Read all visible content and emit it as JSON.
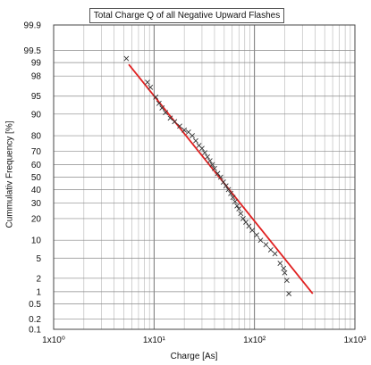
{
  "chart_data": {
    "type": "scatter",
    "title": "Total Charge Q of all Negative Upward Flashes",
    "xlabel": "Charge [As]",
    "ylabel": "Cummulativ Frequency [%]",
    "x_scale": "log",
    "y_scale": "probability",
    "xlim": [
      1,
      1000
    ],
    "ylim": [
      0.1,
      99.9
    ],
    "x_ticks": [
      "1x10⁰",
      "1x10¹",
      "1x10²",
      "1x10³"
    ],
    "x_tick_values": [
      1,
      10,
      100,
      1000
    ],
    "y_ticks": [
      "0.1",
      "0.2",
      "0.5",
      "1",
      "2",
      "5",
      "10",
      "20",
      "30",
      "40",
      "50",
      "60",
      "70",
      "80",
      "90",
      "95",
      "98",
      "99",
      "99.5",
      "99.9"
    ],
    "y_tick_values": [
      0.1,
      0.2,
      0.5,
      1,
      2,
      5,
      10,
      20,
      30,
      40,
      50,
      60,
      70,
      80,
      90,
      95,
      98,
      99,
      99.5,
      99.9
    ],
    "grid": true,
    "series": [
      {
        "marker": "x",
        "color": "#333333",
        "points": [
          [
            5.3,
            99.2
          ],
          [
            8.6,
            97.3
          ],
          [
            9.2,
            96.6
          ],
          [
            10.4,
            94.8
          ],
          [
            11.2,
            93.3
          ],
          [
            12.0,
            92.0
          ],
          [
            13.0,
            90.5
          ],
          [
            14.5,
            88.5
          ],
          [
            16.0,
            87.0
          ],
          [
            18.0,
            85.0
          ],
          [
            20.0,
            83.0
          ],
          [
            22.0,
            82.0
          ],
          [
            24.0,
            80.0
          ],
          [
            26.0,
            77.0
          ],
          [
            28.0,
            74.0
          ],
          [
            30.0,
            72.0
          ],
          [
            32.0,
            69.0
          ],
          [
            34.0,
            66.0
          ],
          [
            36.0,
            63.0
          ],
          [
            38.0,
            60.0
          ],
          [
            40.0,
            57.0
          ],
          [
            43.0,
            53.0
          ],
          [
            46.0,
            50.0
          ],
          [
            49.0,
            46.0
          ],
          [
            52.0,
            43.0
          ],
          [
            55.0,
            40.0
          ],
          [
            58.0,
            37.0
          ],
          [
            61.0,
            34.0
          ],
          [
            64.0,
            31.0
          ],
          [
            67.0,
            28.0
          ],
          [
            70.0,
            26.0
          ],
          [
            73.0,
            23.0
          ],
          [
            77.0,
            20.0
          ],
          [
            82.0,
            18.0
          ],
          [
            88.0,
            16.0
          ],
          [
            95.0,
            14.0
          ],
          [
            105.0,
            12.0
          ],
          [
            115.0,
            10.0
          ],
          [
            130.0,
            8.5
          ],
          [
            145.0,
            7.0
          ],
          [
            160.0,
            6.0
          ],
          [
            180.0,
            4.0
          ],
          [
            195.0,
            3.2
          ],
          [
            200.0,
            2.6
          ],
          [
            210.0,
            1.8
          ],
          [
            220.0,
            0.9
          ]
        ]
      },
      {
        "type": "line",
        "color": "#e02020",
        "points": [
          [
            5.6,
            98.9
          ],
          [
            380,
            0.9
          ]
        ]
      }
    ]
  }
}
